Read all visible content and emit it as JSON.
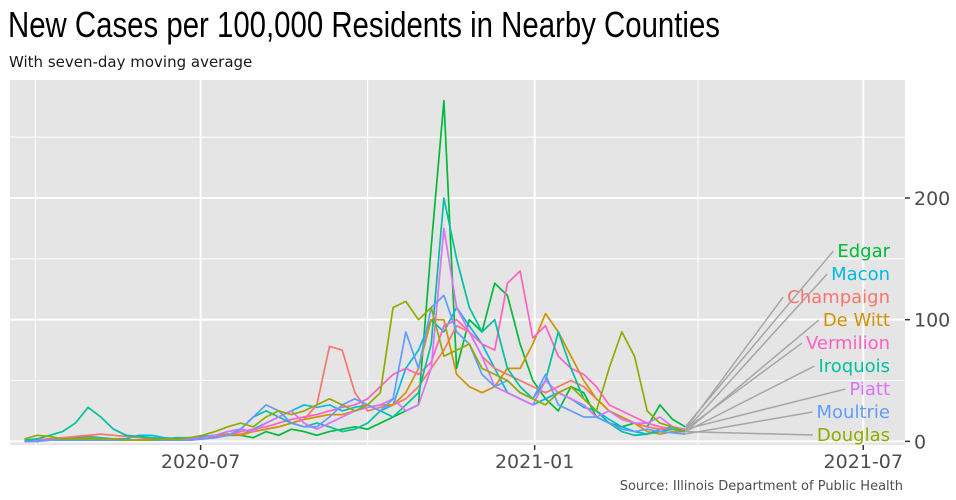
{
  "chart_data": {
    "type": "line",
    "title": "New Cases per 100,000 Residents in Nearby Counties",
    "subtitle": "With seven-day moving average",
    "caption": "Source: Illinois Department of Public Health",
    "xlabel": "",
    "ylabel": "",
    "x_start": "2020-03-26",
    "x_step_days": 7,
    "xlim": [
      "2020-03-18",
      "2021-07-24"
    ],
    "ylim": [
      -3,
      297
    ],
    "x_ticks": [
      "2020-07",
      "2021-01",
      "2021-07"
    ],
    "x_tick_dates": [
      "2020-07-01",
      "2021-01-01",
      "2021-07-01"
    ],
    "x_minor_dates": [
      "2020-04-01",
      "2020-10-01",
      "2021-04-01"
    ],
    "y_ticks": [
      0,
      100,
      200
    ],
    "y_minor": [
      50,
      150,
      250
    ],
    "y_axis_position": "right",
    "grid": true,
    "legend": "direct labels at right with leader lines",
    "leader_line_color": "#a6a6a6",
    "panel_background": "#e5e5e5",
    "series": [
      {
        "name": "Edgar",
        "color": "#00BA38",
        "label_value": 133,
        "values": [
          0,
          1,
          1,
          2,
          1,
          1,
          2,
          1,
          1,
          1,
          1,
          1,
          1,
          1,
          2,
          3,
          5,
          5,
          3,
          8,
          5,
          10,
          8,
          5,
          8,
          10,
          12,
          10,
          15,
          20,
          25,
          30,
          160,
          280,
          60,
          100,
          90,
          130,
          120,
          80,
          50,
          35,
          25,
          45,
          40,
          20,
          15,
          12,
          15,
          12,
          30,
          18,
          12
        ]
      },
      {
        "name": "Macon",
        "color": "#00B9E3",
        "label_value": 103,
        "values": [
          0,
          1,
          2,
          2,
          3,
          4,
          3,
          2,
          2,
          5,
          5,
          3,
          2,
          3,
          4,
          5,
          6,
          5,
          10,
          15,
          20,
          25,
          30,
          28,
          30,
          25,
          28,
          30,
          25,
          30,
          60,
          75,
          100,
          90,
          110,
          95,
          80,
          60,
          40,
          35,
          30,
          35,
          40,
          35,
          28,
          25,
          18,
          12,
          8,
          6,
          10,
          12,
          9
        ]
      },
      {
        "name": "Champaign",
        "color": "#F8766D",
        "label_value": 82,
        "values": [
          0,
          1,
          2,
          3,
          4,
          5,
          6,
          5,
          4,
          3,
          2,
          2,
          2,
          2,
          3,
          4,
          5,
          6,
          8,
          10,
          12,
          15,
          18,
          30,
          78,
          75,
          40,
          25,
          28,
          30,
          35,
          45,
          60,
          75,
          95,
          90,
          70,
          60,
          55,
          50,
          45,
          40,
          45,
          50,
          45,
          35,
          25,
          20,
          15,
          12,
          10,
          10,
          10
        ]
      },
      {
        "name": "De Witt",
        "color": "#D39200",
        "label_value": 72,
        "values": [
          0,
          1,
          1,
          2,
          2,
          3,
          2,
          2,
          1,
          1,
          2,
          2,
          2,
          2,
          3,
          5,
          6,
          5,
          8,
          10,
          12,
          15,
          18,
          20,
          22,
          22,
          25,
          28,
          30,
          30,
          40,
          60,
          100,
          100,
          55,
          45,
          40,
          45,
          60,
          60,
          80,
          105,
          90,
          70,
          50,
          35,
          25,
          20,
          15,
          8,
          6,
          8,
          8
        ]
      },
      {
        "name": "Vermilion",
        "color": "#FF61C3",
        "label_value": 57,
        "values": [
          0,
          1,
          1,
          1,
          1,
          1,
          1,
          1,
          1,
          1,
          1,
          1,
          1,
          1,
          2,
          3,
          5,
          8,
          10,
          12,
          15,
          18,
          20,
          22,
          25,
          28,
          30,
          35,
          45,
          55,
          60,
          55,
          65,
          95,
          100,
          90,
          80,
          75,
          130,
          140,
          85,
          95,
          70,
          60,
          55,
          45,
          30,
          25,
          20,
          15,
          12,
          10,
          10
        ]
      },
      {
        "name": "Iroquois",
        "color": "#00C19F",
        "label_value": 44,
        "values": [
          1,
          2,
          5,
          8,
          15,
          28,
          20,
          10,
          5,
          4,
          3,
          2,
          3,
          3,
          4,
          5,
          8,
          10,
          20,
          25,
          20,
          15,
          12,
          15,
          12,
          8,
          10,
          15,
          25,
          20,
          30,
          40,
          80,
          200,
          150,
          110,
          90,
          100,
          60,
          45,
          35,
          50,
          90,
          60,
          35,
          25,
          15,
          8,
          5,
          6,
          8,
          10,
          8
        ]
      },
      {
        "name": "Piatt",
        "color": "#DB72FB",
        "label_value": 32,
        "values": [
          0,
          0,
          1,
          1,
          1,
          1,
          1,
          1,
          1,
          1,
          1,
          1,
          1,
          2,
          3,
          5,
          8,
          10,
          8,
          15,
          20,
          25,
          15,
          10,
          15,
          20,
          25,
          28,
          30,
          35,
          25,
          30,
          60,
          175,
          110,
          90,
          70,
          45,
          40,
          35,
          30,
          50,
          40,
          35,
          30,
          20,
          25,
          18,
          15,
          15,
          20,
          12,
          10
        ]
      },
      {
        "name": "Moultrie",
        "color": "#619CFF",
        "label_value": 21,
        "values": [
          0,
          0,
          1,
          1,
          1,
          1,
          1,
          1,
          1,
          1,
          1,
          1,
          1,
          1,
          2,
          3,
          5,
          10,
          20,
          30,
          25,
          15,
          12,
          12,
          20,
          30,
          35,
          30,
          25,
          35,
          90,
          60,
          110,
          120,
          90,
          80,
          55,
          45,
          50,
          40,
          35,
          55,
          30,
          25,
          20,
          20,
          15,
          10,
          8,
          10,
          8,
          7,
          6
        ]
      },
      {
        "name": "Douglas",
        "color": "#93AA00",
        "label_value": 6,
        "values": [
          2,
          5,
          4,
          2,
          2,
          2,
          2,
          2,
          1,
          1,
          1,
          2,
          2,
          3,
          5,
          8,
          12,
          15,
          12,
          20,
          25,
          22,
          25,
          30,
          35,
          30,
          25,
          30,
          40,
          110,
          115,
          100,
          110,
          70,
          75,
          80,
          60,
          55,
          50,
          40,
          35,
          30,
          40,
          45,
          35,
          25,
          60,
          90,
          70,
          25,
          15,
          12,
          8
        ]
      }
    ]
  }
}
